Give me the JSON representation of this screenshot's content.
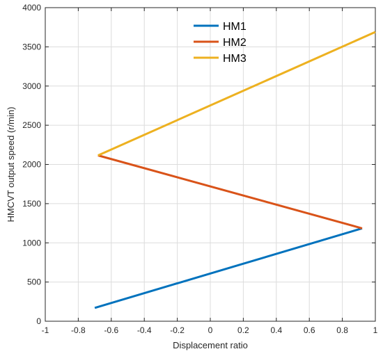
{
  "chart_data": {
    "type": "line",
    "title": "",
    "xlabel": "Displacement ratio",
    "ylabel": "HMCVT output speed (r/min)",
    "xlim": [
      -1,
      1
    ],
    "ylim": [
      0,
      4000
    ],
    "xticks": [
      -1,
      -0.8,
      -0.6,
      -0.4,
      -0.2,
      0,
      0.2,
      0.4,
      0.6,
      0.8,
      1
    ],
    "xtick_labels": [
      "-1",
      "-0.8",
      "-0.6",
      "-0.4",
      "-0.2",
      "0",
      "0.2",
      "0.4",
      "0.6",
      "0.8",
      "1"
    ],
    "yticks": [
      0,
      500,
      1000,
      1500,
      2000,
      2500,
      3000,
      3500,
      4000
    ],
    "ytick_labels": [
      "0",
      "500",
      "1000",
      "1500",
      "2000",
      "2500",
      "3000",
      "3500",
      "4000"
    ],
    "grid": true,
    "legend_position": "top-center",
    "series": [
      {
        "name": "HM1",
        "color": "#0072BD",
        "x": [
          -0.7,
          0.92
        ],
        "y": [
          170,
          1185
        ]
      },
      {
        "name": "HM2",
        "color": "#D95319",
        "x": [
          0.92,
          -0.68
        ],
        "y": [
          1185,
          2115
        ]
      },
      {
        "name": "HM3",
        "color": "#EDB120",
        "x": [
          -0.68,
          1.0
        ],
        "y": [
          2115,
          3690
        ]
      }
    ]
  }
}
